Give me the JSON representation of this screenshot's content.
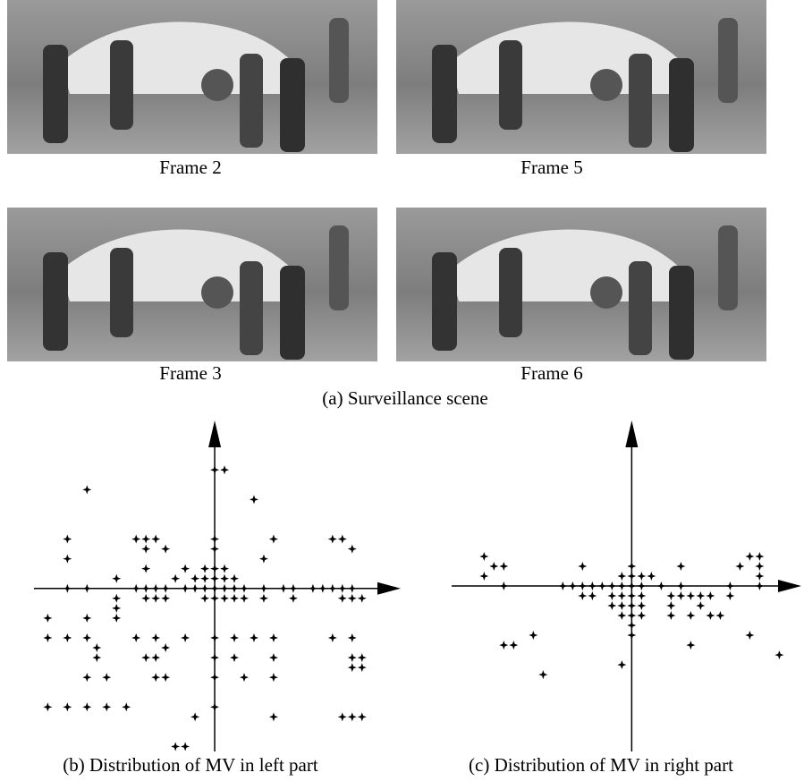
{
  "frames": [
    "Frame 2",
    "Frame 5",
    "Frame 3",
    "Frame 6"
  ],
  "figure_caption": "(a) Surveillance scene",
  "chart_data": [
    {
      "type": "scatter",
      "title": "(b) Distribution of MV in left part",
      "color": "#000000",
      "xlim": [
        -18.4,
        19.3
      ],
      "ylim": [
        -16.5,
        17
      ],
      "x": [
        -13,
        0,
        1,
        4,
        -15,
        -8,
        -7,
        -6,
        -5,
        6,
        12,
        13,
        14,
        0,
        -15,
        -7,
        0,
        5,
        -7,
        -3,
        -1,
        0,
        1,
        0,
        -1,
        1,
        2,
        -2,
        -4,
        -10,
        -15,
        -13,
        -8,
        -7,
        -6,
        -5,
        -3,
        -2,
        -1,
        0,
        1,
        2,
        3,
        5,
        7,
        8,
        10,
        11,
        12,
        13,
        14,
        -7,
        -6,
        -5,
        -1,
        0,
        1,
        2,
        3,
        5,
        8,
        13,
        14,
        15,
        -10,
        -10,
        -17,
        -13,
        -10,
        -17,
        -15,
        -13,
        -12,
        -8,
        -6,
        -5,
        -3,
        0,
        2,
        4,
        6,
        12,
        14,
        -12,
        -7,
        -6,
        0,
        2,
        6,
        14,
        15,
        14,
        15,
        -13,
        -11,
        -6,
        -5,
        0,
        3,
        6,
        -17,
        -15,
        -13,
        -11,
        -9,
        -2,
        0,
        6,
        13,
        14,
        15,
        -4,
        -3
      ],
      "y": [
        10,
        12,
        12,
        9,
        5,
        5,
        5,
        5,
        4,
        5,
        5,
        5,
        4,
        5,
        3,
        4,
        4,
        3,
        2,
        2,
        2,
        2,
        2,
        1,
        1,
        1,
        1,
        1,
        1,
        1,
        0,
        0,
        0,
        0,
        0,
        0,
        0,
        0,
        0,
        0,
        0,
        0,
        0,
        0,
        0,
        0,
        0,
        0,
        0,
        0,
        0,
        -1,
        -1,
        -1,
        -1,
        -1,
        -1,
        -1,
        -1,
        -1,
        -1,
        -1,
        -1,
        -1,
        -1,
        -2,
        -3,
        -3,
        -3,
        -5,
        -5,
        -5,
        -6,
        -5,
        -5,
        -6,
        -5,
        -5,
        -5,
        -5,
        -5,
        -5,
        -5,
        -7,
        -7,
        -7,
        -7,
        -7,
        -7,
        -7,
        -7,
        -8,
        -8,
        -9,
        -9,
        -9,
        -9,
        -9,
        -9,
        -9,
        -12,
        -12,
        -12,
        -12,
        -12,
        -13,
        -12,
        -13,
        -13,
        -13,
        -13,
        -16,
        -16
      ]
    },
    {
      "type": "scatter",
      "title": "(c) Distribution of MV in right part",
      "color": "#000000",
      "xlim": [
        -18.3,
        17.6
      ],
      "ylim": [
        -16.8,
        16.8
      ],
      "x": [
        -15,
        -15,
        -14,
        -13,
        -5,
        0,
        0,
        -1,
        1,
        2,
        -13,
        -7,
        -6,
        -5,
        -4,
        -3,
        -2,
        -1,
        0,
        1,
        3,
        5,
        10,
        13,
        -5,
        -4,
        -2,
        -1,
        0,
        1,
        4,
        4,
        5,
        7,
        8,
        10,
        6,
        -2,
        -1,
        0,
        1,
        0,
        1,
        -1,
        0,
        4,
        6,
        7,
        8,
        9,
        -12,
        -13,
        -10,
        0,
        -1,
        6,
        12,
        15,
        -9,
        11,
        12,
        13,
        13,
        13,
        5
      ],
      "y": [
        3,
        1,
        2,
        2,
        2,
        2,
        1,
        1,
        1,
        1,
        0,
        0,
        0,
        0,
        0,
        0,
        0,
        0,
        0,
        0,
        0,
        0,
        0,
        0,
        -1,
        -1,
        -1,
        -1,
        -1,
        -1,
        -1,
        -2,
        -1,
        -1,
        -1,
        -1,
        -1,
        -2,
        -2,
        -2,
        -2,
        -3,
        -3,
        -3,
        -4,
        -3,
        -3,
        -2,
        -3,
        -3,
        -6,
        -6,
        -5,
        -5,
        -8,
        -6,
        -5,
        -7,
        -9,
        2,
        3,
        3,
        2,
        1,
        2
      ]
    }
  ]
}
